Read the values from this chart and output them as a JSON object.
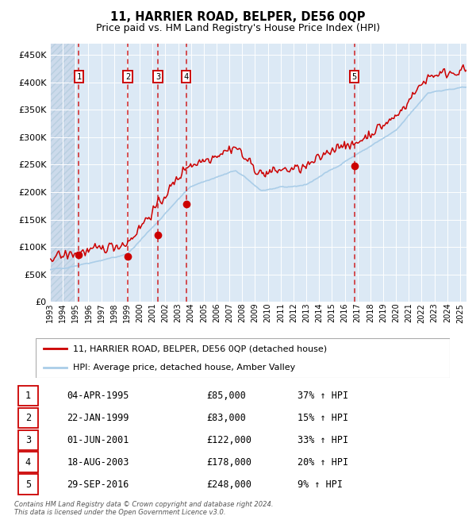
{
  "title": "11, HARRIER ROAD, BELPER, DE56 0QP",
  "subtitle": "Price paid vs. HM Land Registry's House Price Index (HPI)",
  "hpi_line_color": "#aacde8",
  "price_line_color": "#cc0000",
  "marker_color": "#cc0000",
  "background_color": "#dce9f5",
  "grid_color": "#ffffff",
  "dashed_line_color": "#cc0000",
  "box_edge_color": "#cc0000",
  "ylim": [
    0,
    470000
  ],
  "yticks": [
    0,
    50000,
    100000,
    150000,
    200000,
    250000,
    300000,
    350000,
    400000,
    450000
  ],
  "ytick_labels": [
    "£0",
    "£50K",
    "£100K",
    "£150K",
    "£200K",
    "£250K",
    "£300K",
    "£350K",
    "£400K",
    "£450K"
  ],
  "xlim_start": 1993.0,
  "xlim_end": 2025.5,
  "xtick_years": [
    1993,
    1994,
    1995,
    1996,
    1997,
    1998,
    1999,
    2000,
    2001,
    2002,
    2003,
    2004,
    2005,
    2006,
    2007,
    2008,
    2009,
    2010,
    2011,
    2012,
    2013,
    2014,
    2015,
    2016,
    2017,
    2018,
    2019,
    2020,
    2021,
    2022,
    2023,
    2024,
    2025
  ],
  "hatch_end": 1994.9,
  "sales": [
    {
      "id": 1,
      "year": 1995.25,
      "price": 85000,
      "label": "1"
    },
    {
      "id": 2,
      "year": 1999.06,
      "price": 83000,
      "label": "2"
    },
    {
      "id": 3,
      "year": 2001.42,
      "price": 122000,
      "label": "3"
    },
    {
      "id": 4,
      "year": 2003.63,
      "price": 178000,
      "label": "4"
    },
    {
      "id": 5,
      "year": 2016.75,
      "price": 248000,
      "label": "5"
    }
  ],
  "legend_entries": [
    {
      "label": "11, HARRIER ROAD, BELPER, DE56 0QP (detached house)",
      "color": "#cc0000"
    },
    {
      "label": "HPI: Average price, detached house, Amber Valley",
      "color": "#aacde8"
    }
  ],
  "table_rows": [
    {
      "id": "1",
      "date": "04-APR-1995",
      "price": "£85,000",
      "hpi": "37% ↑ HPI"
    },
    {
      "id": "2",
      "date": "22-JAN-1999",
      "price": "£83,000",
      "hpi": "15% ↑ HPI"
    },
    {
      "id": "3",
      "date": "01-JUN-2001",
      "price": "£122,000",
      "hpi": "33% ↑ HPI"
    },
    {
      "id": "4",
      "date": "18-AUG-2003",
      "price": "£178,000",
      "hpi": "20% ↑ HPI"
    },
    {
      "id": "5",
      "date": "29-SEP-2016",
      "price": "£248,000",
      "hpi": "9% ↑ HPI"
    }
  ],
  "footer": "Contains HM Land Registry data © Crown copyright and database right 2024.\nThis data is licensed under the Open Government Licence v3.0."
}
